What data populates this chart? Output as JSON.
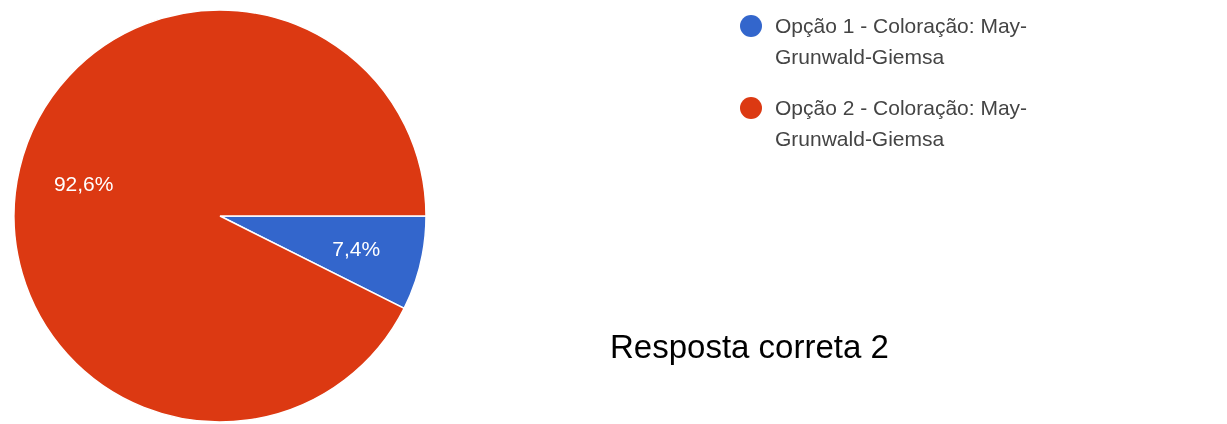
{
  "chart_data": {
    "type": "pie",
    "categories": [
      "Opção 1 - Coloração: May-Grunwald-Giemsa",
      "Opção 2 - Coloração: May-Grunwald-Giemsa"
    ],
    "values": [
      7.4,
      92.6
    ],
    "colors": [
      "#3366cc",
      "#dc3912"
    ],
    "value_labels": [
      "7,4%",
      "92,6%"
    ],
    "legend": "top right",
    "annotations": [
      "Resposta correta 2"
    ]
  }
}
